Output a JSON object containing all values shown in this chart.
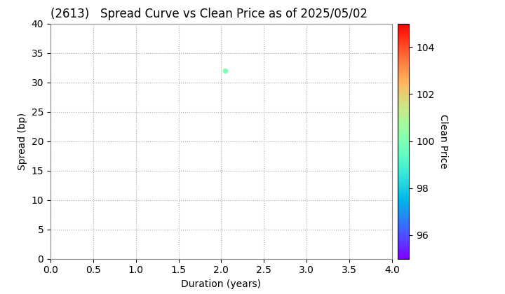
{
  "title": "(2613)   Spread Curve vs Clean Price as of 2025/05/02",
  "xlabel": "Duration (years)",
  "ylabel": "Spread (bp)",
  "xlim": [
    0.0,
    4.0
  ],
  "ylim": [
    0,
    40
  ],
  "xticks": [
    0.0,
    0.5,
    1.0,
    1.5,
    2.0,
    2.5,
    3.0,
    3.5,
    4.0
  ],
  "yticks": [
    0,
    5,
    10,
    15,
    20,
    25,
    30,
    35,
    40
  ],
  "colorbar_label": "Clean Price",
  "colorbar_vmin": 95,
  "colorbar_vmax": 105,
  "colorbar_ticks": [
    96,
    98,
    100,
    102,
    104
  ],
  "data_points": [
    {
      "duration": 2.05,
      "spread": 32.0,
      "clean_price": 100.0
    }
  ],
  "marker_size": 20,
  "title_fontsize": 12,
  "label_fontsize": 10,
  "tick_fontsize": 10,
  "grid_color": "#aaaaaa",
  "grid_linestyle": ":",
  "background_color": "#ffffff",
  "fig_width": 7.2,
  "fig_height": 4.2,
  "fig_dpi": 100
}
